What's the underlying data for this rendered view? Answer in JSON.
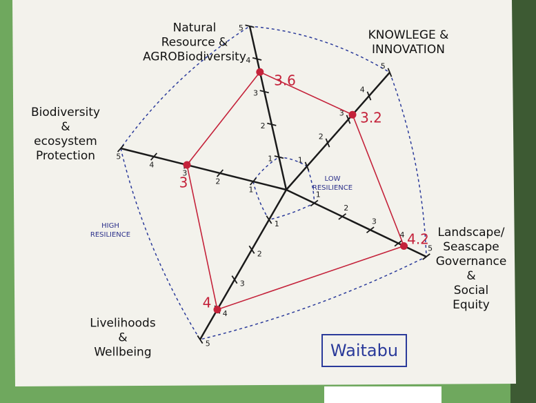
{
  "chart_data": {
    "type": "radar",
    "categories": [
      "Natural\nResource &\nAGROBiodiversity",
      "KNOWLEGE &\nINNOVATION",
      "Landscape/\nSeascape\nGovernance &\nSocial\nEquity",
      "Livelihoods\n&\nWellbeing",
      "Biodiversity\n&\necosystem\nProtection"
    ],
    "values": [
      3.6,
      3.2,
      4.2,
      4,
      3
    ],
    "color": "#c4223a",
    "rlim": [
      0,
      5
    ],
    "rticks": [
      1,
      2,
      3,
      4,
      5
    ],
    "annotations": [
      "LOW\nRESILIENCE",
      "HIGH\nRESILIENCE"
    ],
    "site_label": "Waitabu"
  }
}
